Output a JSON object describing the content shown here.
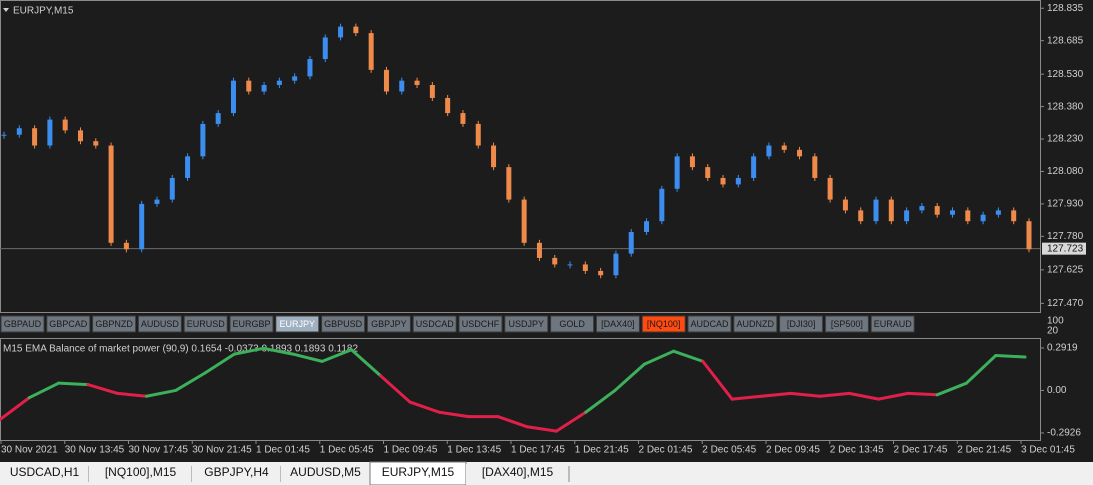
{
  "chart": {
    "title": "EURJPY,M15",
    "ylim": [
      127.43,
      128.85
    ],
    "yticks": [
      128.835,
      128.685,
      {
        "value": 128.53,
        "label": "128.530"
      },
      {
        "value": 128.38,
        "label": "128.380"
      },
      {
        "value": 128.23,
        "label": "128.230"
      },
      {
        "value": 128.08,
        "label": "128.080"
      },
      {
        "value": 127.93,
        "label": "127.930"
      },
      {
        "value": 127.78,
        "label": "127.780"
      },
      127.625,
      {
        "value": 127.47,
        "label": "127.470"
      }
    ],
    "current_price": 127.723,
    "up_color": "#3b8ef0",
    "down_color": "#f08a4b",
    "closes": [
      128.25,
      128.28,
      128.2,
      128.32,
      128.27,
      128.22,
      128.2,
      127.75,
      127.72,
      127.93,
      127.95,
      128.05,
      128.15,
      128.3,
      128.35,
      128.5,
      128.45,
      128.48,
      128.5,
      128.52,
      128.6,
      128.7,
      128.75,
      128.72,
      128.55,
      128.45,
      128.5,
      128.48,
      128.42,
      128.35,
      128.3,
      128.2,
      128.1,
      127.95,
      127.75,
      127.68,
      127.65,
      127.65,
      127.62,
      127.6,
      127.7,
      127.8,
      127.85,
      128.0,
      128.15,
      128.1,
      128.05,
      128.02,
      128.05,
      128.15,
      128.2,
      128.18,
      128.15,
      128.05,
      127.95,
      127.9,
      127.85,
      127.95,
      127.85,
      127.9,
      127.92,
      127.88,
      127.9,
      127.85,
      127.88,
      127.9,
      127.85,
      127.72
    ]
  },
  "symbols": [
    "GBPAUD",
    "GBPCAD",
    "GBPNZD",
    "AUDUSD",
    "EURUSD",
    "EURGBP",
    "EURJPY",
    "GBPUSD",
    "GBPJPY",
    "USDCAD",
    "USDCHF",
    "USDJPY",
    "GOLD",
    "[DAX40]",
    "[NQ100]",
    "AUDCAD",
    "AUDNZD",
    "[DJI30]",
    "[SP500]",
    "EURAUD"
  ],
  "active_symbol": 6,
  "highlight_symbol": 14,
  "levels": [
    "100",
    "20"
  ],
  "indicator": {
    "title": "M15 EMA Balance of market power (90,9) 0.1654 -0.0373 0.1893 0.1893 0.1182",
    "ylim": [
      -0.341,
      0.347
    ],
    "yticks": [
      0.2919,
      {
        "value": 0,
        "label": "0.00"
      },
      -0.2926
    ],
    "up_color": "#3cb05a",
    "down_color": "#e0204a",
    "values": [
      -0.2,
      -0.05,
      0.05,
      0.04,
      -0.02,
      -0.04,
      0.0,
      0.12,
      0.25,
      0.29,
      0.25,
      0.2,
      0.28,
      0.1,
      -0.08,
      -0.15,
      -0.18,
      -0.18,
      -0.25,
      -0.28,
      -0.15,
      0.0,
      0.18,
      0.27,
      0.2,
      -0.06,
      -0.04,
      -0.02,
      -0.04,
      -0.02,
      -0.06,
      -0.02,
      -0.03,
      0.05,
      0.24,
      0.23
    ]
  },
  "times": [
    "30 Nov 2021",
    "30 Nov 13:45",
    "30 Nov 17:45",
    "30 Nov 21:45",
    "1 Dec 01:45",
    "1 Dec 05:45",
    "1 Dec 09:45",
    "1 Dec 13:45",
    "1 Dec 17:45",
    "1 Dec 21:45",
    "2 Dec 01:45",
    "2 Dec 05:45",
    "2 Dec 09:45",
    "2 Dec 13:45",
    "2 Dec 17:45",
    "2 Dec 21:45",
    "3 Dec 01:45"
  ],
  "tabs": [
    "USDCAD,H1",
    "[NQ100],M15",
    "GBPJPY,H4",
    "AUDUSD,M5",
    "EURJPY,M15",
    "[DAX40],M15"
  ],
  "active_tab": 4
}
